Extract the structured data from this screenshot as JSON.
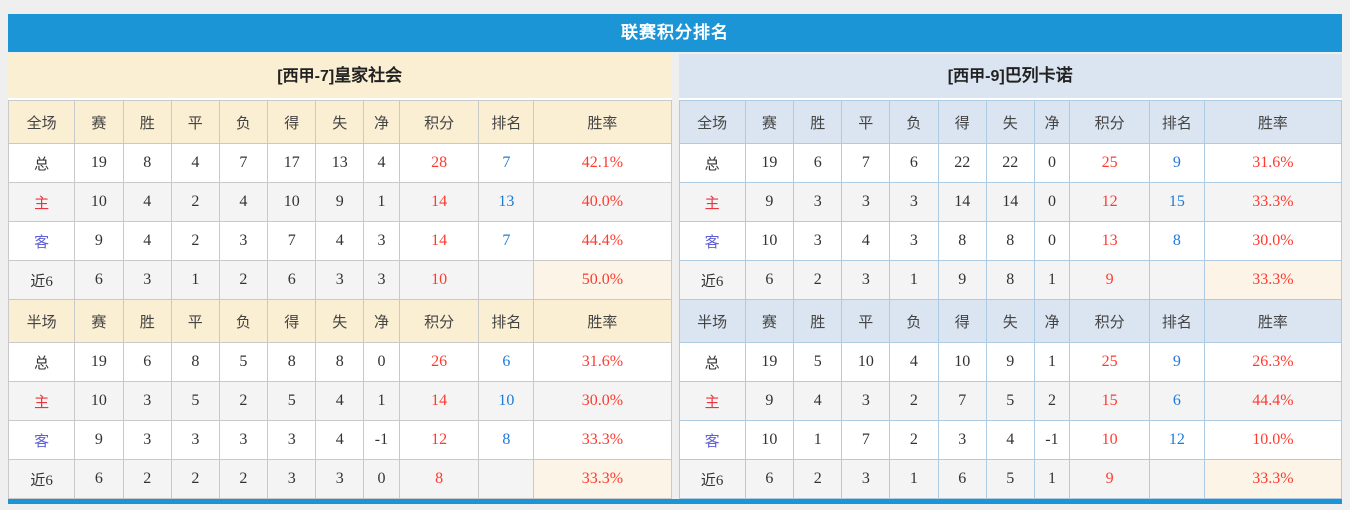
{
  "title": "联赛积分排名",
  "colors": {
    "accent_blue": "#1b95d5",
    "left_theme_bg": "#faeed3",
    "right_theme_bg": "#dbe5f1",
    "left_border": "#c9c9c9",
    "right_border": "#aecbe1",
    "points_red": "#ff3b30",
    "rank_blue": "#1d7ad9",
    "home_label_red": "#e9353f",
    "away_label_blue": "#5f5fd6",
    "recent_winrate_bg": "#fbf4e7"
  },
  "tables": [
    {
      "side": "left",
      "theme": "cream",
      "header_prefix": "[西甲-7]",
      "team_name": "皇家社会",
      "sections": [
        {
          "columns": [
            "全场",
            "赛",
            "胜",
            "平",
            "负",
            "得",
            "失",
            "净",
            "积分",
            "排名",
            "胜率"
          ],
          "rows": [
            {
              "label": "总",
              "type": "total",
              "stats": [
                "19",
                "8",
                "4",
                "7",
                "17",
                "13",
                "4"
              ],
              "points": "28",
              "rank": "7",
              "win_rate": "42.1%"
            },
            {
              "label": "主",
              "type": "home",
              "stats": [
                "10",
                "4",
                "2",
                "4",
                "10",
                "9",
                "1"
              ],
              "points": "14",
              "rank": "13",
              "win_rate": "40.0%"
            },
            {
              "label": "客",
              "type": "away",
              "stats": [
                "9",
                "4",
                "2",
                "3",
                "7",
                "4",
                "3"
              ],
              "points": "14",
              "rank": "7",
              "win_rate": "44.4%"
            },
            {
              "label": "近6",
              "type": "recent",
              "stats": [
                "6",
                "3",
                "1",
                "2",
                "6",
                "3",
                "3"
              ],
              "points": "10",
              "rank": "",
              "win_rate": "50.0%"
            }
          ]
        },
        {
          "columns": [
            "半场",
            "赛",
            "胜",
            "平",
            "负",
            "得",
            "失",
            "净",
            "积分",
            "排名",
            "胜率"
          ],
          "rows": [
            {
              "label": "总",
              "type": "total",
              "stats": [
                "19",
                "6",
                "8",
                "5",
                "8",
                "8",
                "0"
              ],
              "points": "26",
              "rank": "6",
              "win_rate": "31.6%"
            },
            {
              "label": "主",
              "type": "home",
              "stats": [
                "10",
                "3",
                "5",
                "2",
                "5",
                "4",
                "1"
              ],
              "points": "14",
              "rank": "10",
              "win_rate": "30.0%"
            },
            {
              "label": "客",
              "type": "away",
              "stats": [
                "9",
                "3",
                "3",
                "3",
                "3",
                "4",
                "-1"
              ],
              "points": "12",
              "rank": "8",
              "win_rate": "33.3%"
            },
            {
              "label": "近6",
              "type": "recent",
              "stats": [
                "6",
                "2",
                "2",
                "2",
                "3",
                "3",
                "0"
              ],
              "points": "8",
              "rank": "",
              "win_rate": "33.3%"
            }
          ]
        }
      ]
    },
    {
      "side": "right",
      "theme": "blue",
      "header_prefix": "[西甲-9]",
      "team_name": "巴列卡诺",
      "sections": [
        {
          "columns": [
            "全场",
            "赛",
            "胜",
            "平",
            "负",
            "得",
            "失",
            "净",
            "积分",
            "排名",
            "胜率"
          ],
          "rows": [
            {
              "label": "总",
              "type": "total",
              "stats": [
                "19",
                "6",
                "7",
                "6",
                "22",
                "22",
                "0"
              ],
              "points": "25",
              "rank": "9",
              "win_rate": "31.6%"
            },
            {
              "label": "主",
              "type": "home",
              "stats": [
                "9",
                "3",
                "3",
                "3",
                "14",
                "14",
                "0"
              ],
              "points": "12",
              "rank": "15",
              "win_rate": "33.3%"
            },
            {
              "label": "客",
              "type": "away",
              "stats": [
                "10",
                "3",
                "4",
                "3",
                "8",
                "8",
                "0"
              ],
              "points": "13",
              "rank": "8",
              "win_rate": "30.0%"
            },
            {
              "label": "近6",
              "type": "recent",
              "stats": [
                "6",
                "2",
                "3",
                "1",
                "9",
                "8",
                "1"
              ],
              "points": "9",
              "rank": "",
              "win_rate": "33.3%"
            }
          ]
        },
        {
          "columns": [
            "半场",
            "赛",
            "胜",
            "平",
            "负",
            "得",
            "失",
            "净",
            "积分",
            "排名",
            "胜率"
          ],
          "rows": [
            {
              "label": "总",
              "type": "total",
              "stats": [
                "19",
                "5",
                "10",
                "4",
                "10",
                "9",
                "1"
              ],
              "points": "25",
              "rank": "9",
              "win_rate": "26.3%"
            },
            {
              "label": "主",
              "type": "home",
              "stats": [
                "9",
                "4",
                "3",
                "2",
                "7",
                "5",
                "2"
              ],
              "points": "15",
              "rank": "6",
              "win_rate": "44.4%"
            },
            {
              "label": "客",
              "type": "away",
              "stats": [
                "10",
                "1",
                "7",
                "2",
                "3",
                "4",
                "-1"
              ],
              "points": "10",
              "rank": "12",
              "win_rate": "10.0%"
            },
            {
              "label": "近6",
              "type": "recent",
              "stats": [
                "6",
                "2",
                "3",
                "1",
                "6",
                "5",
                "1"
              ],
              "points": "9",
              "rank": "",
              "win_rate": "33.3%"
            }
          ]
        }
      ]
    }
  ]
}
